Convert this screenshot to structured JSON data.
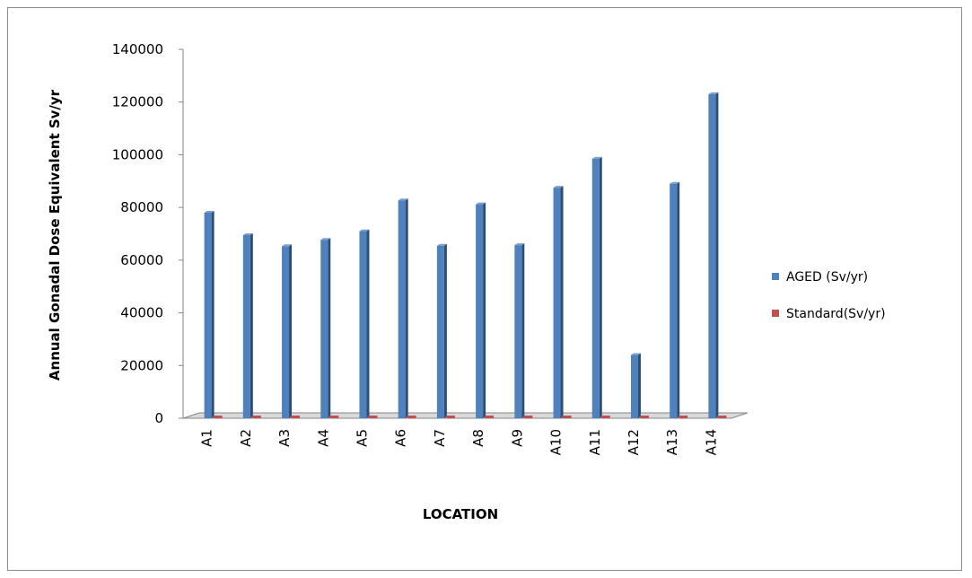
{
  "chart_data": {
    "type": "bar",
    "title": "",
    "xlabel": "LOCATION",
    "ylabel": "Annual Gonadal Dose Equivalent Sv/yr",
    "categories": [
      "A1",
      "A2",
      "A3",
      "A4",
      "A5",
      "A6",
      "A7",
      "A8",
      "A9",
      "A10",
      "A11",
      "A12",
      "A13",
      "A14"
    ],
    "series": [
      {
        "name": "AGED (Sv/yr)",
        "color": "#4f81bd",
        "values": [
          78000,
          69500,
          65300,
          67700,
          71000,
          82700,
          65500,
          81200,
          65700,
          87500,
          98500,
          24000,
          89000,
          123000
        ]
      },
      {
        "name": "Standard(Sv/yr)",
        "color": "#c0504d",
        "values": [
          0,
          0,
          0,
          0,
          0,
          0,
          0,
          0,
          0,
          0,
          0,
          0,
          0,
          0
        ]
      }
    ],
    "ylim": [
      0,
      140000
    ],
    "yticks": [
      0,
      20000,
      40000,
      60000,
      80000,
      100000,
      120000,
      140000
    ],
    "grid": false,
    "legend_position": "right",
    "style": "3d-column"
  }
}
